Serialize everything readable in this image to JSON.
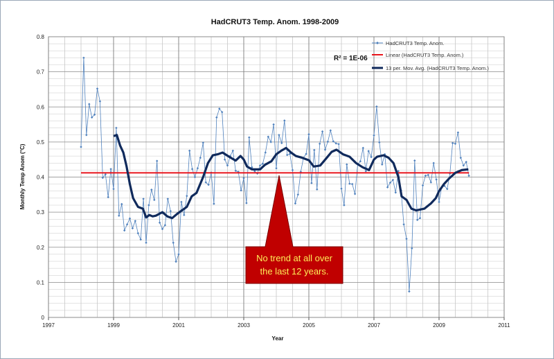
{
  "chart_data": {
    "type": "line",
    "title": "HadCRUT3 Temp. Anom. 1998-2009",
    "xlabel": "Year",
    "ylabel": "Monthly Temp Anom (°C)",
    "xlim": [
      1997,
      2011
    ],
    "ylim": [
      0,
      0.8
    ],
    "x_ticks": [
      "1997",
      "1999",
      "2001",
      "2003",
      "2005",
      "2007",
      "2009",
      "2011"
    ],
    "y_ticks": [
      "0",
      "0.1",
      "0.2",
      "0.3",
      "0.4",
      "0.5",
      "0.6",
      "0.7",
      "0.8"
    ],
    "grid": true,
    "legend_position": "top-right",
    "r2_label": "R² = 1E-06",
    "annotation": "No trend at all over the last 12 years.",
    "annotation_lines": [
      "No trend at all over",
      "the last 12 years."
    ],
    "colors": {
      "monthly": "#4f81bd",
      "linear": "#e8141b",
      "moving_avg": "#102a5c",
      "callout_fill": "#c00000",
      "callout_text": "#ffee58",
      "grid": "#a6a6a6"
    },
    "series": [
      {
        "name": "HadCRUT3 Temp. Anom.",
        "start_year": 1998,
        "values": [
          0.486,
          0.74,
          0.52,
          0.608,
          0.57,
          0.578,
          0.652,
          0.616,
          0.398,
          0.408,
          0.343,
          0.423,
          0.366,
          0.54,
          0.29,
          0.323,
          0.248,
          0.265,
          0.282,
          0.254,
          0.275,
          0.24,
          0.222,
          0.338,
          0.213,
          0.32,
          0.364,
          0.335,
          0.446,
          0.27,
          0.252,
          0.263,
          0.338,
          0.303,
          0.213,
          0.159,
          0.18,
          0.329,
          0.292,
          0.346,
          0.475,
          0.423,
          0.4,
          0.425,
          0.455,
          0.498,
          0.385,
          0.378,
          0.413,
          0.324,
          0.57,
          0.595,
          0.585,
          0.45,
          0.433,
          0.46,
          0.475,
          0.418,
          0.415,
          0.362,
          0.397,
          0.326,
          0.513,
          0.428,
          0.417,
          0.41,
          0.433,
          0.438,
          0.47,
          0.515,
          0.5,
          0.55,
          0.425,
          0.52,
          0.497,
          0.561,
          0.463,
          0.466,
          0.42,
          0.325,
          0.35,
          0.415,
          0.455,
          0.466,
          0.522,
          0.383,
          0.477,
          0.365,
          0.495,
          0.53,
          0.478,
          0.501,
          0.533,
          0.502,
          0.496,
          0.494,
          0.367,
          0.32,
          0.436,
          0.381,
          0.38,
          0.352,
          0.436,
          0.445,
          0.483,
          0.417,
          0.474,
          0.457,
          0.519,
          0.601,
          0.499,
          0.436,
          0.465,
          0.371,
          0.384,
          0.392,
          0.356,
          0.417,
          0.362,
          0.265,
          0.224,
          0.074,
          0.197,
          0.447,
          0.278,
          0.283,
          0.376,
          0.404,
          0.406,
          0.385,
          0.44,
          0.393,
          0.329,
          0.372,
          0.375,
          0.366,
          0.41,
          0.497,
          0.495,
          0.527,
          0.455,
          0.433,
          0.443,
          0.404
        ]
      },
      {
        "name": "Linear (HadCRUT3 Temp. Anom.)",
        "x": [
          1998.0,
          2009.92
        ],
        "values": [
          0.412,
          0.412
        ]
      },
      {
        "name": "13 per. Mov. Avg. (HadCRUT3 Temp. Anom.)",
        "x": [
          1999.0,
          1999.1,
          1999.2,
          1999.3,
          1999.4,
          1999.5,
          1999.6,
          1999.75,
          1999.9,
          2000.0,
          2000.1,
          2000.2,
          2000.3,
          2000.5,
          2000.65,
          2000.8,
          2000.95,
          2001.1,
          2001.25,
          2001.4,
          2001.55,
          2001.75,
          2001.9,
          2002.05,
          2002.2,
          2002.35,
          2002.55,
          2002.75,
          2002.9,
          2003.0,
          2003.1,
          2003.25,
          2003.5,
          2003.65,
          2003.85,
          2004.0,
          2004.15,
          2004.3,
          2004.45,
          2004.6,
          2004.8,
          2005.0,
          2005.15,
          2005.35,
          2005.55,
          2005.7,
          2005.85,
          2006.05,
          2006.25,
          2006.45,
          2006.65,
          2006.85,
          2007.0,
          2007.1,
          2007.3,
          2007.45,
          2007.6,
          2007.75,
          2007.85,
          2008.0,
          2008.15,
          2008.3,
          2008.55,
          2008.75,
          2008.9,
          2009.0,
          2009.15,
          2009.3,
          2009.5,
          2009.7,
          2009.9
        ],
        "values": [
          0.517,
          0.52,
          0.49,
          0.47,
          0.43,
          0.38,
          0.34,
          0.315,
          0.31,
          0.285,
          0.292,
          0.288,
          0.29,
          0.3,
          0.288,
          0.283,
          0.295,
          0.305,
          0.315,
          0.345,
          0.355,
          0.4,
          0.44,
          0.462,
          0.465,
          0.47,
          0.458,
          0.447,
          0.46,
          0.45,
          0.43,
          0.422,
          0.422,
          0.435,
          0.445,
          0.465,
          0.475,
          0.483,
          0.47,
          0.46,
          0.455,
          0.448,
          0.43,
          0.433,
          0.455,
          0.472,
          0.478,
          0.465,
          0.458,
          0.44,
          0.428,
          0.42,
          0.45,
          0.458,
          0.462,
          0.455,
          0.44,
          0.4,
          0.345,
          0.335,
          0.31,
          0.305,
          0.31,
          0.325,
          0.34,
          0.36,
          0.38,
          0.395,
          0.412,
          0.42,
          0.422
        ]
      }
    ]
  }
}
